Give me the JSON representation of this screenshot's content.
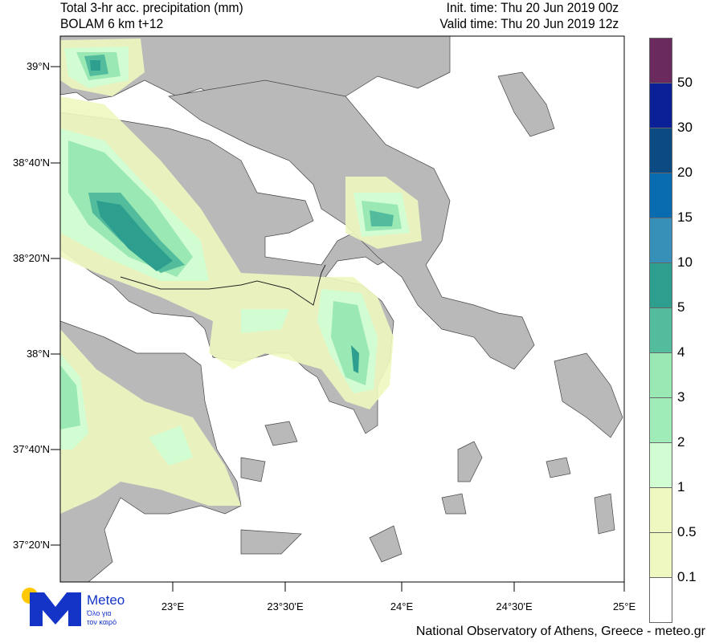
{
  "header": {
    "title": "Total 3-hr acc. precipitation (mm)",
    "model": "BOLAM 6 km t+12",
    "init_time": "Init. time: Thu 20 Jun 2019 00z",
    "valid_time": "Valid time: Thu 20 Jun 2019 12z"
  },
  "axes": {
    "lat_labels": [
      "39°N",
      "38°40'N",
      "38°20'N",
      "38°N",
      "37°40'N",
      "37°20'N"
    ],
    "lon_labels": [
      "23°E",
      "23°30'E",
      "24°E",
      "24°30'E",
      "25°E"
    ]
  },
  "colorbar": {
    "labels": [
      "50",
      "30",
      "20",
      "15",
      "10",
      "5",
      "4",
      "3",
      "2",
      "1",
      "0.5",
      "0.1"
    ],
    "colors": [
      "#6b2a5e",
      "#0b1f96",
      "#0b4a82",
      "#0a6cb0",
      "#3690b8",
      "#2e9e8e",
      "#52bc9c",
      "#9ae8b4",
      "#a0ecb8",
      "#d2fcd2",
      "#eef8c0",
      "#eef8c0",
      "#ffffff"
    ]
  },
  "logo": {
    "name": "Meteo",
    "tagline1": "Όλο για",
    "tagline2": "τον καιρό",
    "yellow": "#ffc800",
    "blue": "#1434c8"
  },
  "footer": "National Observatory of Athens, Greece - meteo.gr"
}
